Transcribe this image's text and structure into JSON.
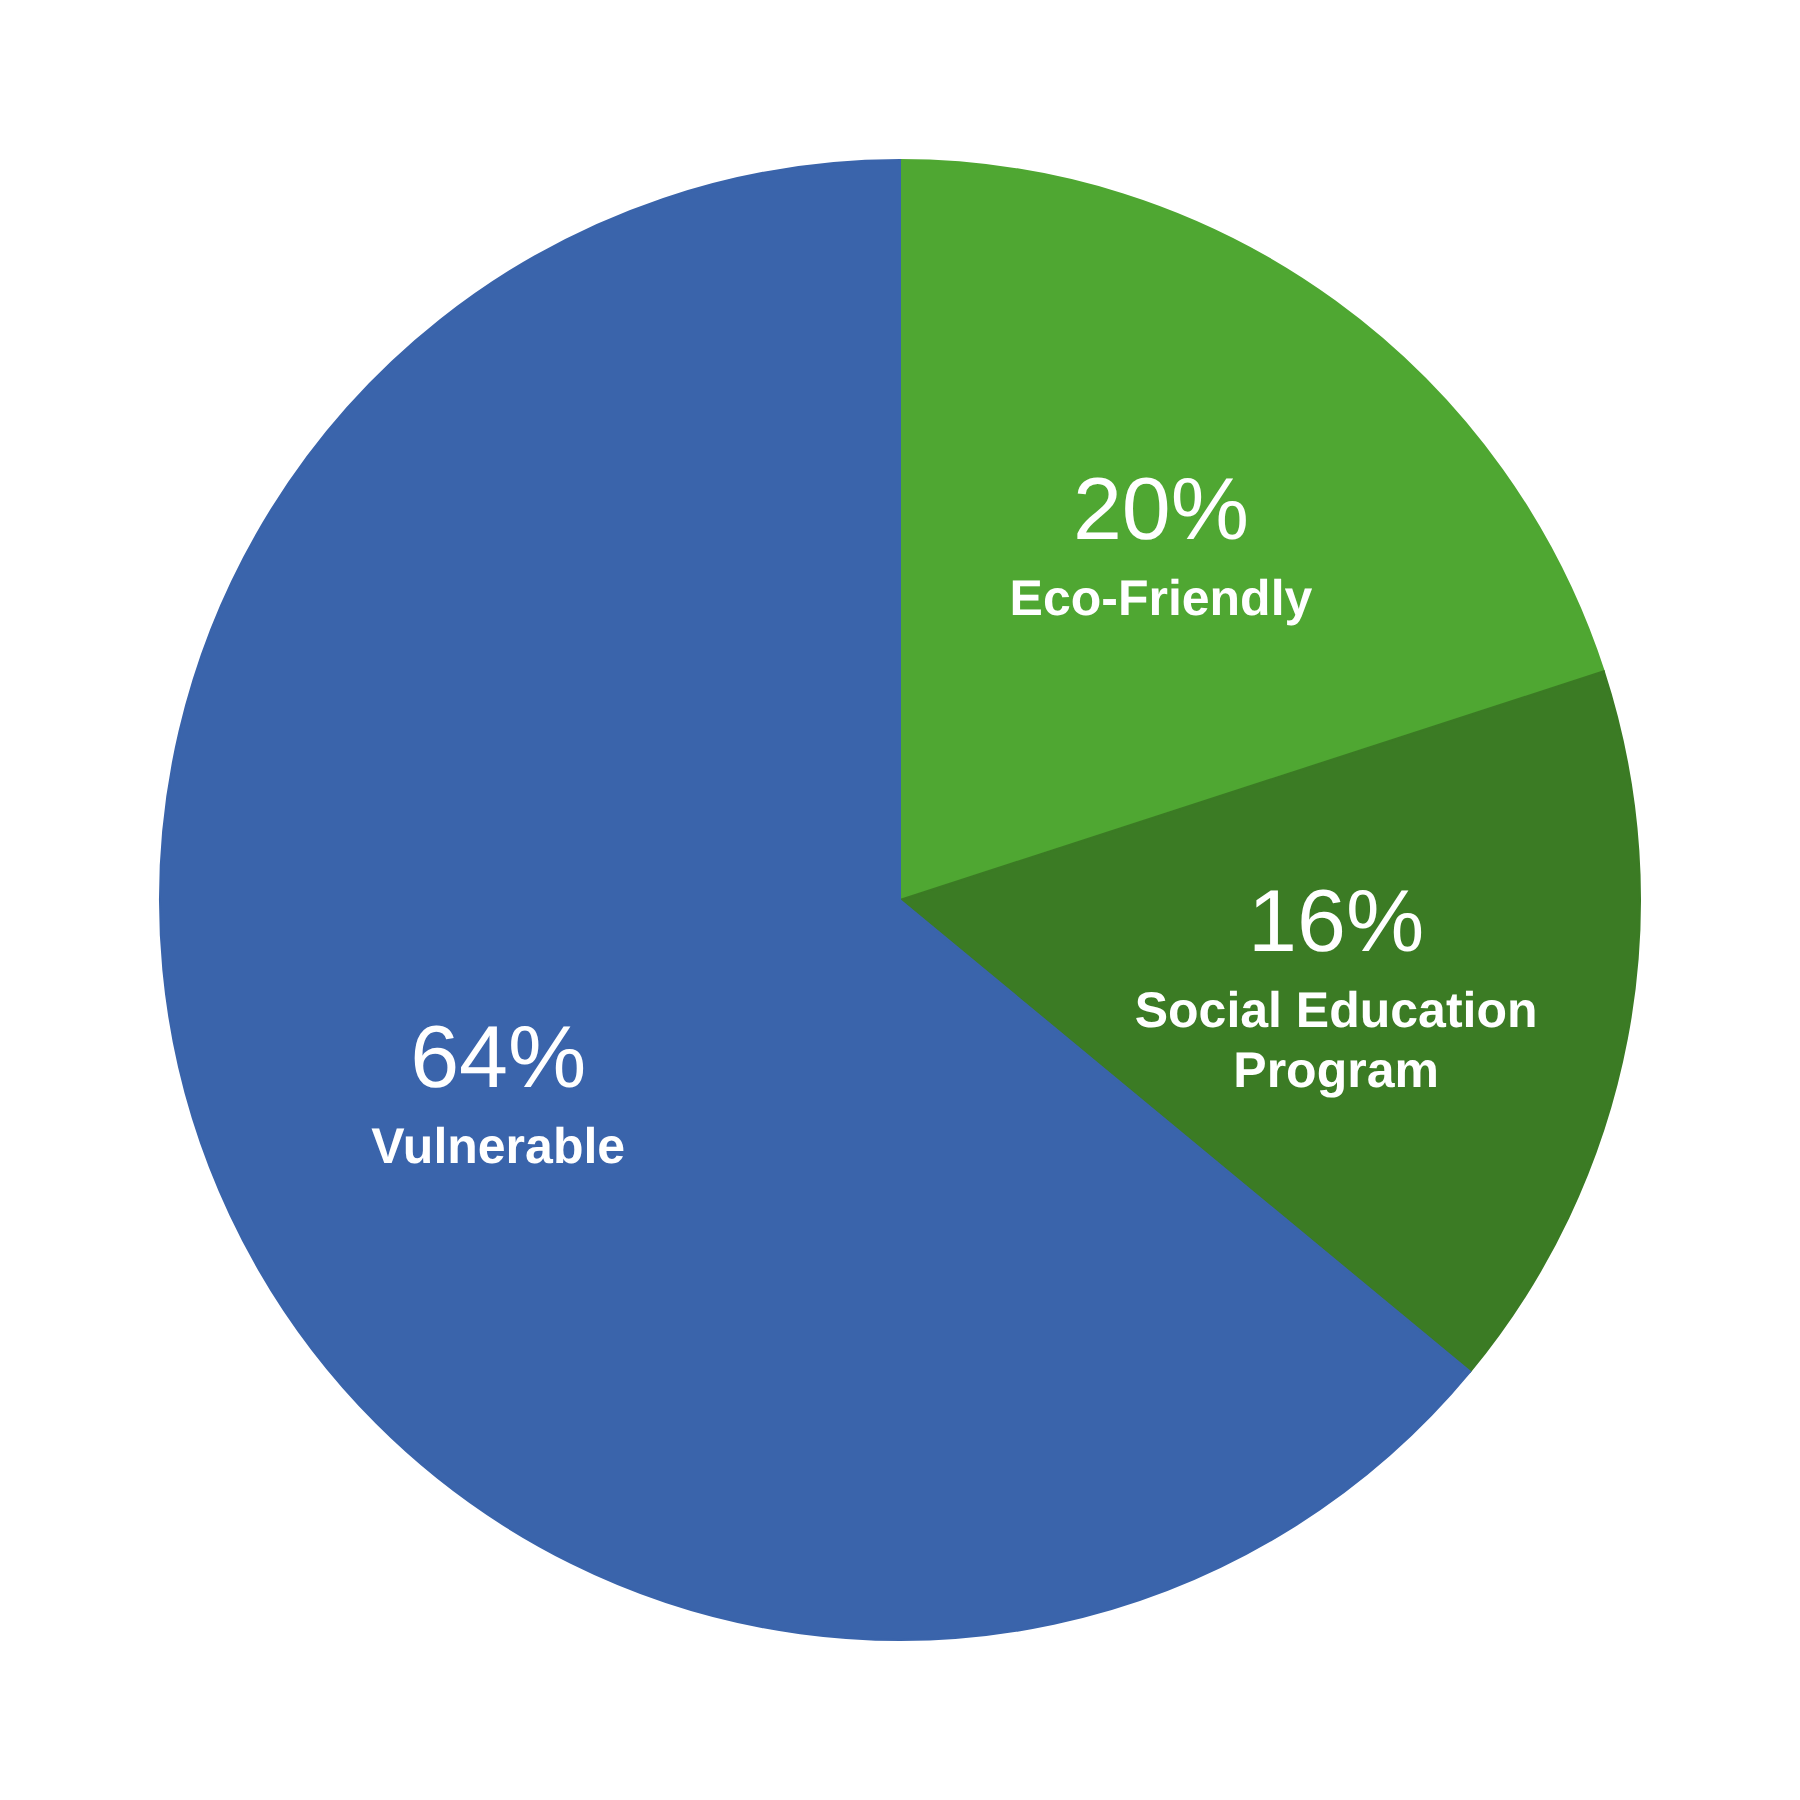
{
  "chart_data": {
    "type": "pie",
    "categories": [
      "Eco-Friendly",
      "Social Education Program",
      "Vulnerable"
    ],
    "values": [
      20,
      16,
      64
    ],
    "value_labels": [
      "20%",
      "16%",
      "64%"
    ],
    "colors": [
      "#4fa732",
      "#3b7b24",
      "#3a64ab"
    ]
  }
}
